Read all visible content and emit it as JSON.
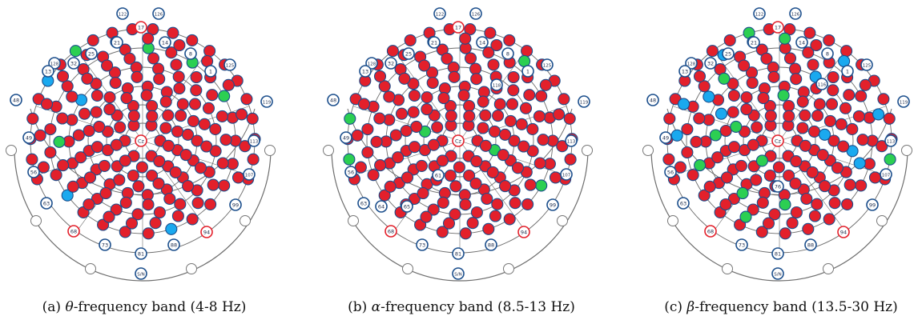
{
  "colors": {
    "red": "#e3202b",
    "green": "#2ccf52",
    "blue": "#1aa9ef",
    "ring": "#1b4e8c",
    "line": "#6e6e6e"
  },
  "common_labels": [
    "122",
    "126",
    "17",
    "21",
    "14",
    "8",
    "1",
    "125",
    "128",
    "25",
    "32",
    "13",
    "48",
    "119",
    "49",
    "113",
    "56",
    "107",
    "63",
    "99",
    "68",
    "94",
    "73",
    "81",
    "88",
    "Cz",
    "S/N"
  ],
  "panels": [
    {
      "letter": "(a)",
      "greek": "θ",
      "caption_rest": "-frequency band (4-8 Hz)",
      "green_count": 5,
      "blue_count": 4,
      "green_labels": [],
      "blue_labels": []
    },
    {
      "letter": "(b)",
      "greek": "α",
      "caption_rest": "-frequency band (8.5-13 Hz)",
      "green_count": 6,
      "blue_count": 0,
      "extra_labels": [
        "118",
        "61",
        "64",
        "65"
      ]
    },
    {
      "letter": "(c)",
      "greek": "β",
      "caption_rest": "-frequency band (13.5-30 Hz)",
      "green_count": 13,
      "blue_count": 11,
      "extra_labels": [
        "116",
        "76"
      ]
    }
  ]
}
